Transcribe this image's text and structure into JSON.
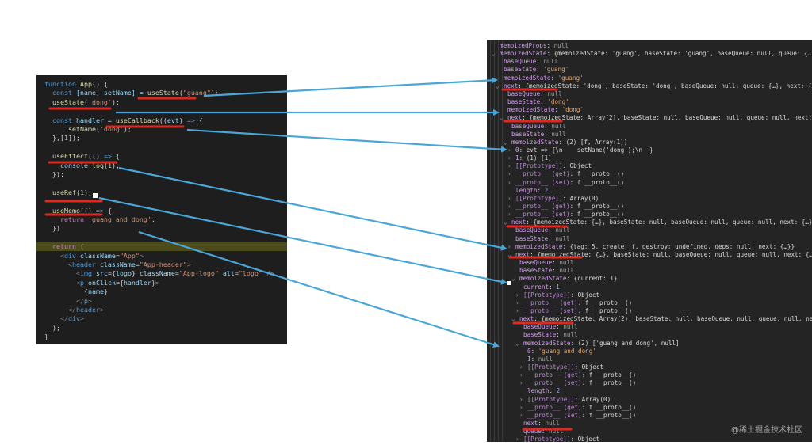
{
  "code_editor": {
    "lines": [
      [
        [
          "function ",
          "kw"
        ],
        [
          "App",
          "fn"
        ],
        [
          "() {",
          "pl"
        ]
      ],
      [
        [
          "  const ",
          "kw"
        ],
        [
          "[name, setName] = ",
          "var"
        ],
        [
          "useState",
          "fn"
        ],
        [
          "(",
          "pl"
        ],
        [
          "\"guang\"",
          "str"
        ],
        [
          ");",
          "pl"
        ]
      ],
      [
        [
          "  useState",
          "fn"
        ],
        [
          "(",
          "pl"
        ],
        [
          "'dong'",
          "str"
        ],
        [
          ");",
          "pl"
        ]
      ],
      [],
      [
        [
          "  const ",
          "kw"
        ],
        [
          "handler = ",
          "var"
        ],
        [
          "useCallback",
          "fn"
        ],
        [
          "((",
          "pl"
        ],
        [
          "evt",
          "var"
        ],
        [
          ") ",
          "pl"
        ],
        [
          "=>",
          "kw"
        ],
        [
          " {",
          "pl"
        ]
      ],
      [
        [
          "      setName",
          "fn"
        ],
        [
          "(",
          "pl"
        ],
        [
          "'dong'",
          "str"
        ],
        [
          ");",
          "pl"
        ]
      ],
      [
        [
          "  },[",
          "pl"
        ],
        [
          "1",
          "num"
        ],
        [
          "]);",
          "pl"
        ]
      ],
      [],
      [
        [
          "  useEffect",
          "fn"
        ],
        [
          "(() ",
          "pl"
        ],
        [
          "=>",
          "kw"
        ],
        [
          " {",
          "pl"
        ]
      ],
      [
        [
          "    console",
          "var"
        ],
        [
          ".",
          "pl"
        ],
        [
          "log",
          "fn"
        ],
        [
          "(",
          "pl"
        ],
        [
          "1",
          "num"
        ],
        [
          ");",
          "pl"
        ]
      ],
      [
        [
          "  });",
          "pl"
        ]
      ],
      [],
      [
        [
          "  useRef",
          "fn"
        ],
        [
          "(",
          "pl"
        ],
        [
          "1",
          "num"
        ],
        [
          ");",
          "pl"
        ]
      ],
      [],
      [
        [
          "  useMemo",
          "fn"
        ],
        [
          "(() ",
          "pl"
        ],
        [
          "=>",
          "kw"
        ],
        [
          " {",
          "pl"
        ]
      ],
      [
        [
          "    return ",
          "ret"
        ],
        [
          "'guang and dong'",
          "str"
        ],
        [
          ";",
          "pl"
        ]
      ],
      [
        [
          "  })",
          "pl"
        ]
      ],
      [],
      [
        [
          "  return ",
          "ret"
        ],
        [
          "(",
          "pl"
        ]
      ],
      [
        [
          "    <",
          "tag"
        ],
        [
          "div ",
          "tn"
        ],
        [
          "className",
          "at"
        ],
        [
          "=",
          "pl"
        ],
        [
          "\"App\"",
          "str"
        ],
        [
          ">",
          "tag"
        ]
      ],
      [
        [
          "      <",
          "tag"
        ],
        [
          "header ",
          "tn"
        ],
        [
          "className",
          "at"
        ],
        [
          "=",
          "pl"
        ],
        [
          "\"App-header\"",
          "str"
        ],
        [
          ">",
          "tag"
        ]
      ],
      [
        [
          "        <",
          "tag"
        ],
        [
          "img ",
          "tn"
        ],
        [
          "src",
          "at"
        ],
        [
          "={",
          "pl"
        ],
        [
          "logo",
          "var"
        ],
        [
          "} ",
          "pl"
        ],
        [
          "className",
          "at"
        ],
        [
          "=",
          "pl"
        ],
        [
          "\"App-logo\" ",
          "str"
        ],
        [
          "alt",
          "at"
        ],
        [
          "=",
          "pl"
        ],
        [
          "\"logo\"",
          "str"
        ],
        [
          " />",
          "tag"
        ]
      ],
      [
        [
          "        <",
          "tag"
        ],
        [
          "p ",
          "tn"
        ],
        [
          "onClick",
          "at"
        ],
        [
          "={",
          "pl"
        ],
        [
          "handler",
          "var"
        ],
        [
          "}",
          "pl"
        ],
        [
          ">",
          "tag"
        ]
      ],
      [
        [
          "          {",
          "pl"
        ],
        [
          "name",
          "var"
        ],
        [
          "}",
          "pl"
        ]
      ],
      [
        [
          "        </",
          "tag"
        ],
        [
          "p",
          "tn"
        ],
        [
          ">",
          "tag"
        ]
      ],
      [
        [
          "      </",
          "tag"
        ],
        [
          "header",
          "tn"
        ],
        [
          ">",
          "tag"
        ]
      ],
      [
        [
          "    </",
          "tag"
        ],
        [
          "div",
          "tn"
        ],
        [
          ">",
          "tag"
        ]
      ],
      [
        [
          "  );",
          "pl"
        ]
      ],
      [
        [
          "}",
          "pl"
        ]
      ]
    ],
    "highlighted_line": 18
  },
  "devtools": {
    "rows": [
      {
        "l": 0,
        "c": "",
        "k": "memoizedProps",
        "v": "null",
        "t": "g"
      },
      {
        "l": 0,
        "c": "v",
        "k": "memoizedState",
        "v": "{memoizedState: 'guang', baseState: 'guang', baseQueue: null, queue: {…}",
        "t": "o"
      },
      {
        "l": 1,
        "c": "",
        "k": "baseQueue",
        "v": "null",
        "t": "g"
      },
      {
        "l": 1,
        "c": "",
        "k": "baseState",
        "v": "'guang'",
        "t": "s"
      },
      {
        "l": 1,
        "c": "",
        "k": "memoizedState",
        "v": "'guang'",
        "t": "s"
      },
      {
        "l": 1,
        "c": "v",
        "k": "next",
        "v": "{memoizedState: 'dong', baseState: 'dong', baseQueue: null, queue: {…}, next: {…",
        "t": "o"
      },
      {
        "l": 2,
        "c": "",
        "k": "baseQueue",
        "v": "null",
        "t": "g"
      },
      {
        "l": 2,
        "c": "",
        "k": "baseState",
        "v": "'dong'",
        "t": "s"
      },
      {
        "l": 2,
        "c": "",
        "k": "memoizedState",
        "v": "'dong'",
        "t": "s"
      },
      {
        "l": 2,
        "c": "v",
        "k": "next",
        "v": "{memoizedState: Array(2), baseState: null, baseQueue: null, queue: null, next:",
        "t": "o"
      },
      {
        "l": 3,
        "c": "",
        "k": "baseQueue",
        "v": "null",
        "t": "g"
      },
      {
        "l": 3,
        "c": "",
        "k": "baseState",
        "v": "null",
        "t": "g"
      },
      {
        "l": 3,
        "c": "v",
        "k": "memoizedState",
        "v": "(2) [f, Array(1)]",
        "t": "o"
      },
      {
        "l": 4,
        "c": ">",
        "k": "0",
        "v": "evt => {\\n    setName('dong');\\n  }",
        "t": "o"
      },
      {
        "l": 4,
        "c": ">",
        "k": "1",
        "v": "(1) [1]",
        "t": "o"
      },
      {
        "l": 4,
        "c": ">",
        "k": "[[Prototype]]",
        "v": "Object",
        "t": "o"
      },
      {
        "l": 4,
        "c": ">",
        "k": "__proto__ (get)",
        "v": "f __proto__()",
        "t": "o"
      },
      {
        "l": 4,
        "c": ">",
        "k": "__proto__ (set)",
        "v": "f __proto__()",
        "t": "o"
      },
      {
        "l": 4,
        "c": "",
        "k": "length",
        "v": "2",
        "t": "n"
      },
      {
        "l": 4,
        "c": ">",
        "k": "[[Prototype]]",
        "v": "Array(0)",
        "t": "o"
      },
      {
        "l": 4,
        "c": ">",
        "k": "__proto__ (get)",
        "v": "f __proto__()",
        "t": "o"
      },
      {
        "l": 4,
        "c": ">",
        "k": "__proto__ (set)",
        "v": "f __proto__()",
        "t": "o"
      },
      {
        "l": 3,
        "c": "v",
        "k": "next",
        "v": "{memoizedState: {…}, baseState: null, baseQueue: null, queue: null, next: {…}",
        "t": "o"
      },
      {
        "l": 4,
        "c": "",
        "k": "baseQueue",
        "v": "null",
        "t": "g"
      },
      {
        "l": 4,
        "c": "",
        "k": "baseState",
        "v": "null",
        "t": "g"
      },
      {
        "l": 4,
        "c": ">",
        "k": "memoizedState",
        "v": "{tag: 5, create: f, destroy: undefined, deps: null, next: {…}}",
        "t": "o"
      },
      {
        "l": 4,
        "c": "v",
        "k": "next",
        "v": "{memoizedState: {…}, baseState: null, baseQueue: null, queue: null, next: {…",
        "t": "o"
      },
      {
        "l": 5,
        "c": "",
        "k": "baseQueue",
        "v": "null",
        "t": "g"
      },
      {
        "l": 5,
        "c": "",
        "k": "baseState",
        "v": "null",
        "t": "g"
      },
      {
        "l": 5,
        "c": "v",
        "k": "memoizedState",
        "v": "{current: 1}",
        "t": "o"
      },
      {
        "l": 6,
        "c": "",
        "k": "current",
        "v": "1",
        "t": "n"
      },
      {
        "l": 6,
        "c": ">",
        "k": "[[Prototype]]",
        "v": "Object",
        "t": "o"
      },
      {
        "l": 6,
        "c": ">",
        "k": "__proto__ (get)",
        "v": "f __proto__()",
        "t": "o"
      },
      {
        "l": 6,
        "c": ">",
        "k": "__proto__ (set)",
        "v": "f __proto__()",
        "t": "o"
      },
      {
        "l": 5,
        "c": "v",
        "k": "next",
        "v": "{memoizedState: Array(2), baseState: null, baseQueue: null, queue: null, ne",
        "t": "o"
      },
      {
        "l": 6,
        "c": "",
        "k": "baseQueue",
        "v": "null",
        "t": "g"
      },
      {
        "l": 6,
        "c": "",
        "k": "baseState",
        "v": "null",
        "t": "g"
      },
      {
        "l": 6,
        "c": "v",
        "k": "memoizedState",
        "v": "(2) ['guang and dong', null]",
        "t": "o"
      },
      {
        "l": 7,
        "c": "",
        "k": "0",
        "v": "'guang and dong'",
        "t": "s"
      },
      {
        "l": 7,
        "c": "",
        "k": "1",
        "v": "null",
        "t": "g"
      },
      {
        "l": 7,
        "c": ">",
        "k": "[[Prototype]]",
        "v": "Object",
        "t": "o"
      },
      {
        "l": 7,
        "c": ">",
        "k": "__proto__ (get)",
        "v": "f __proto__()",
        "t": "o"
      },
      {
        "l": 7,
        "c": ">",
        "k": "__proto__ (set)",
        "v": "f __proto__()",
        "t": "o"
      },
      {
        "l": 7,
        "c": "",
        "k": "length",
        "v": "2",
        "t": "n"
      },
      {
        "l": 7,
        "c": ">",
        "k": "[[Prototype]]",
        "v": "Array(0)",
        "t": "o"
      },
      {
        "l": 7,
        "c": ">",
        "k": "__proto__ (get)",
        "v": "f __proto__()",
        "t": "o"
      },
      {
        "l": 7,
        "c": ">",
        "k": "__proto__ (set)",
        "v": "f __proto__()",
        "t": "o"
      },
      {
        "l": 6,
        "c": "",
        "k": "next",
        "v": "null",
        "t": "g"
      },
      {
        "l": 6,
        "c": "",
        "k": "queue",
        "v": "null",
        "t": "g"
      },
      {
        "l": 6,
        "c": ">",
        "k": "[[Prototype]]",
        "v": "Object",
        "t": "o"
      }
    ]
  },
  "watermark": "@稀土掘金技术社区",
  "colors": {
    "arrow": "#4aa6d6",
    "underline": "#e0281e"
  }
}
